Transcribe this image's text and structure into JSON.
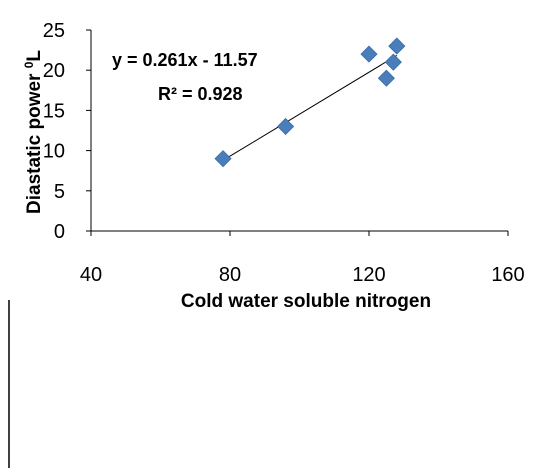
{
  "chart_data": {
    "type": "scatter",
    "xlabel": "Cold water soluble nitrogen",
    "ylabel_main": "Diastatic power ",
    "ylabel_sup": "0",
    "ylabel_unit": "L",
    "xlim": [
      40,
      160
    ],
    "ylim": [
      0,
      25
    ],
    "xticks": [
      "40",
      "80",
      "120",
      "160"
    ],
    "yticks": [
      "0",
      "5",
      "10",
      "15",
      "20",
      "25"
    ],
    "grid": false,
    "legend": "none",
    "points": [
      {
        "x": 78,
        "y": 9
      },
      {
        "x": 96,
        "y": 13
      },
      {
        "x": 120,
        "y": 22
      },
      {
        "x": 125,
        "y": 19
      },
      {
        "x": 127,
        "y": 21
      },
      {
        "x": 128,
        "y": 23
      }
    ],
    "trendline": {
      "slope": 0.261,
      "intercept": -11.57,
      "x_range": [
        78,
        128
      ],
      "equation_label": "y = 0.261x - 11.57",
      "r2_label": "R² = 0.928"
    },
    "marker_color": "#4a7ebb",
    "line_color": "#000000"
  }
}
